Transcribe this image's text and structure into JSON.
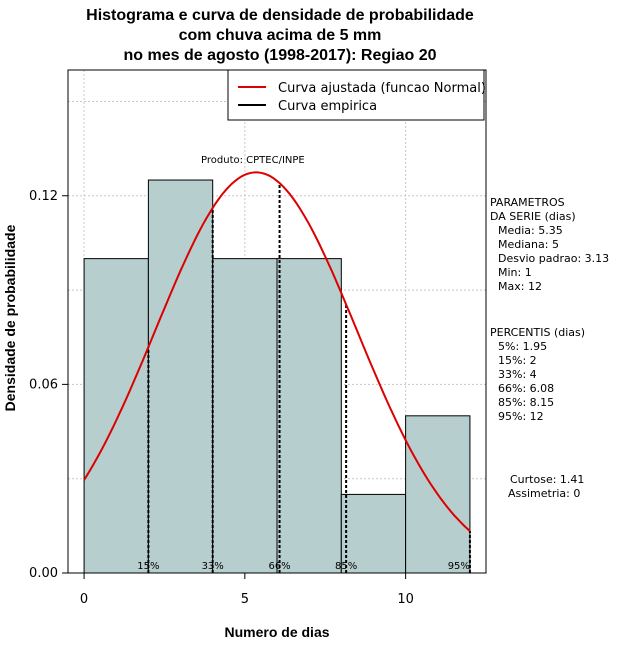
{
  "title_lines": [
    "Histograma e curva de densidade de probabilidade",
    "com chuva acima de 5 mm",
    "no mes de agosto (1998-2017): Regiao 20"
  ],
  "credit": "Produto: CPTEC/INPE",
  "colors": {
    "bars": "#b7cece",
    "curve": "#dd0000",
    "grid": "#c8c8c8"
  },
  "chart_data": {
    "type": "bar",
    "xlabel": "Numero de dias",
    "ylabel": "Densidade de probabilidade",
    "xlim": [
      -0.5,
      12.5
    ],
    "ylim": [
      0,
      0.16
    ],
    "x_ticks": [
      0,
      5,
      10
    ],
    "y_ticks": [
      0.0,
      0.06,
      0.12
    ],
    "y_tick_labels": [
      "0.00",
      "0.06",
      "0.12"
    ],
    "grid": true,
    "bins": [
      {
        "start": 0,
        "end": 2,
        "density": 0.1
      },
      {
        "start": 2,
        "end": 4,
        "density": 0.125
      },
      {
        "start": 4,
        "end": 6,
        "density": 0.1
      },
      {
        "start": 6,
        "end": 8,
        "density": 0.1
      },
      {
        "start": 8,
        "end": 10,
        "density": 0.025
      },
      {
        "start": 10,
        "end": 12,
        "density": 0.05
      }
    ],
    "normal_fit": {
      "mean": 5.35,
      "sd": 3.13,
      "x_range": [
        0,
        12
      ]
    },
    "percentile_marks": [
      {
        "label": "15%",
        "x": 2
      },
      {
        "label": "33%",
        "x": 4
      },
      {
        "label": "66%",
        "x": 6.08
      },
      {
        "label": "85%",
        "x": 8.15
      },
      {
        "label": "95%",
        "x": 12
      }
    ],
    "legend": {
      "placement": "top-right",
      "entries": [
        {
          "label": "Curva ajustada (funcao Normal)",
          "color": "#dd0000"
        },
        {
          "label": "Curva empirica",
          "color": "#000000"
        }
      ]
    }
  },
  "parametros": {
    "header": [
      "PARAMETROS",
      "DA SERIE (dias)"
    ],
    "items": [
      "Media: 5.35",
      "Mediana: 5",
      "Desvio padrao: 3.13",
      "Min: 1",
      "Max: 12"
    ]
  },
  "percentis": {
    "header": "PERCENTIS (dias)",
    "items": [
      "5%: 1.95",
      "15%: 2",
      "33%: 4",
      "66%: 6.08",
      "85%: 8.15",
      "95%: 12"
    ]
  },
  "shape": {
    "curtose": "Curtose: 1.41",
    "assimetria": "Assimetria: 0"
  }
}
